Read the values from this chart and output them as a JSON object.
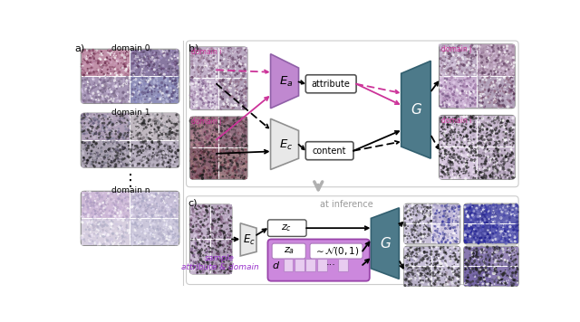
{
  "pink": "#cc3399",
  "purple_ea": "#b07cc0",
  "teal_g": "#4d7a8a",
  "white_ec": "#e8e8e8",
  "purple_box": "#bb77cc",
  "gray_border": "#999999",
  "fig_w": 6.4,
  "fig_h": 3.56,
  "section_b_border": "#cccccc",
  "section_c_border": "#cccccc",
  "arrow_gray": "#aaaaaa",
  "za_box_fill": "#cc88dd",
  "d_box_fill": "#ddbbee",
  "sample_color": "#9933cc"
}
